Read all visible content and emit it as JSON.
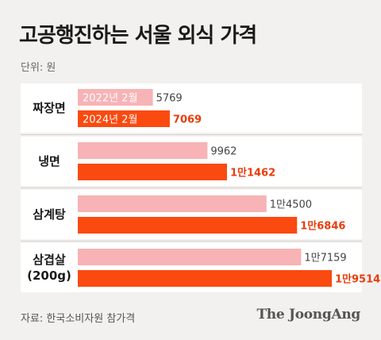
{
  "title": "고공행진하는 서울 외식 가격",
  "unit_label": "단위: 원",
  "source": "자료: 한국소비자원 참가격",
  "publisher": "The JoongAng",
  "colors": {
    "bar_2022": "#f7b3b6",
    "bar_2024": "#fa4a10",
    "label_2022": "#444444",
    "label_2024": "#e83d0c",
    "row_bg": "#ffffff",
    "divider": "#d4d0cc"
  },
  "chart_data": {
    "type": "bar",
    "orientation": "horizontal",
    "categories": [
      "짜장면",
      "냉면",
      "삼계탕",
      "삼겹살\n(200g)"
    ],
    "series": [
      {
        "name": "2022년 2월",
        "values": [
          5769,
          9962,
          14500,
          17159
        ],
        "value_labels": [
          "5769",
          "9962",
          "1만4500",
          "1만7159"
        ]
      },
      {
        "name": "2024년 2월",
        "values": [
          7069,
          11462,
          16846,
          19514
        ],
        "value_labels": [
          "7069",
          "1만1462",
          "1만6846",
          "1만9514"
        ]
      }
    ],
    "xlim": [
      0,
      19514
    ],
    "legend": "inline-in-first-row-bars",
    "grid": false,
    "xlabel": "",
    "ylabel": ""
  }
}
